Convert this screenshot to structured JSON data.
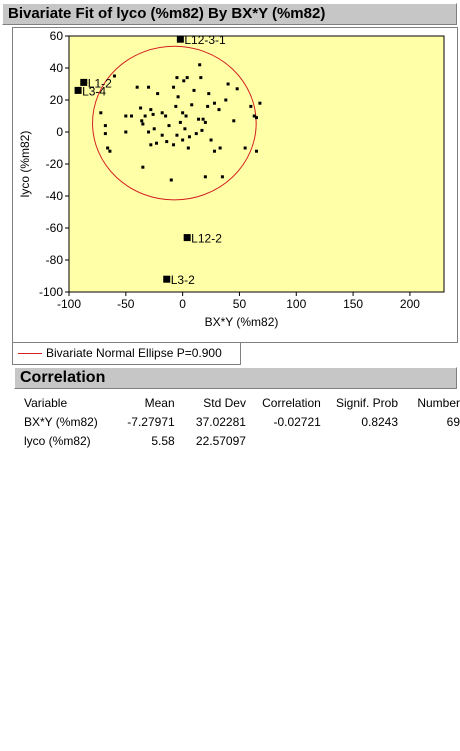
{
  "report": {
    "title": "Bivariate Fit of lyco (%m82) By BX*Y (%m82)",
    "legend_label": "Bivariate Normal Ellipse P=0.900",
    "correlation_header": "Correlation"
  },
  "colors": {
    "plot_bg": "#ffffa8",
    "ellipse": "#d42020",
    "header_bg": "#c6c6c6"
  },
  "chart_data": {
    "type": "scatter",
    "xlabel": "BX*Y (%m82)",
    "ylabel": "lyco (%m82)",
    "xlim": [
      -100,
      230
    ],
    "ylim": [
      -100,
      60
    ],
    "xticks": [
      -100,
      -50,
      0,
      50,
      100,
      150,
      200
    ],
    "yticks": [
      60,
      40,
      20,
      0,
      -20,
      -40,
      -60,
      -80,
      -100
    ],
    "ellipse": {
      "cx": -7.28,
      "cy": 5.58,
      "rx": 72,
      "ry": 48
    },
    "points": [
      [
        -60,
        35
      ],
      [
        -72,
        12
      ],
      [
        -68,
        4
      ],
      [
        -68,
        -1
      ],
      [
        -66,
        -10
      ],
      [
        -64,
        -12
      ],
      [
        -50,
        10
      ],
      [
        -50,
        0
      ],
      [
        -45,
        10
      ],
      [
        -40,
        28
      ],
      [
        -37,
        15
      ],
      [
        -36,
        7
      ],
      [
        -35,
        5
      ],
      [
        -33,
        10
      ],
      [
        -30,
        28
      ],
      [
        -30,
        0
      ],
      [
        -28,
        -8
      ],
      [
        -28,
        14
      ],
      [
        -26,
        11
      ],
      [
        -25,
        2
      ],
      [
        -23,
        -7
      ],
      [
        -22,
        24
      ],
      [
        -18,
        12
      ],
      [
        -18,
        -2
      ],
      [
        -15,
        10
      ],
      [
        -14,
        -6
      ],
      [
        -12,
        4
      ],
      [
        -8,
        -8
      ],
      [
        -8,
        28
      ],
      [
        -6,
        16
      ],
      [
        -5,
        -2
      ],
      [
        -5,
        34
      ],
      [
        -4,
        22
      ],
      [
        -2,
        6
      ],
      [
        0,
        12
      ],
      [
        0,
        -5
      ],
      [
        1,
        32
      ],
      [
        2,
        2
      ],
      [
        3,
        10
      ],
      [
        4,
        34
      ],
      [
        6,
        -3
      ],
      [
        8,
        17
      ],
      [
        10,
        26
      ],
      [
        12,
        -1
      ],
      [
        14,
        8
      ],
      [
        15,
        42
      ],
      [
        16,
        34
      ],
      [
        17,
        1
      ],
      [
        18,
        8
      ],
      [
        20,
        6
      ],
      [
        22,
        16
      ],
      [
        23,
        24
      ],
      [
        25,
        -5
      ],
      [
        28,
        18
      ],
      [
        28,
        -12
      ],
      [
        32,
        14
      ],
      [
        33,
        -10
      ],
      [
        38,
        20
      ],
      [
        40,
        30
      ],
      [
        45,
        7
      ],
      [
        48,
        27
      ],
      [
        55,
        -10
      ],
      [
        60,
        16
      ],
      [
        63,
        10
      ],
      [
        65,
        9
      ],
      [
        65,
        -12
      ],
      [
        68,
        18
      ],
      [
        -10,
        -30
      ],
      [
        -35,
        -22
      ],
      [
        5,
        -10
      ],
      [
        20,
        -28
      ],
      [
        35,
        -28
      ]
    ],
    "labeled_points": [
      {
        "x": -2,
        "y": 58,
        "label": "L12-3-1"
      },
      {
        "x": -87,
        "y": 31,
        "label": "L1-2"
      },
      {
        "x": -92,
        "y": 26,
        "label": "L3-4"
      },
      {
        "x": 4,
        "y": -66,
        "label": "L12-2"
      },
      {
        "x": -14,
        "y": -92,
        "label": "L3-2"
      }
    ]
  },
  "correlation": {
    "columns": [
      "Variable",
      "Mean",
      "Std Dev",
      "Correlation",
      "Signif. Prob",
      "Number"
    ],
    "rows": [
      [
        "BX*Y (%m82)",
        "-7.27971",
        "37.02281",
        "-0.02721",
        "0.8243",
        "69"
      ],
      [
        "lyco (%m82)",
        "5.58",
        "22.57097",
        "",
        "",
        ""
      ]
    ]
  }
}
